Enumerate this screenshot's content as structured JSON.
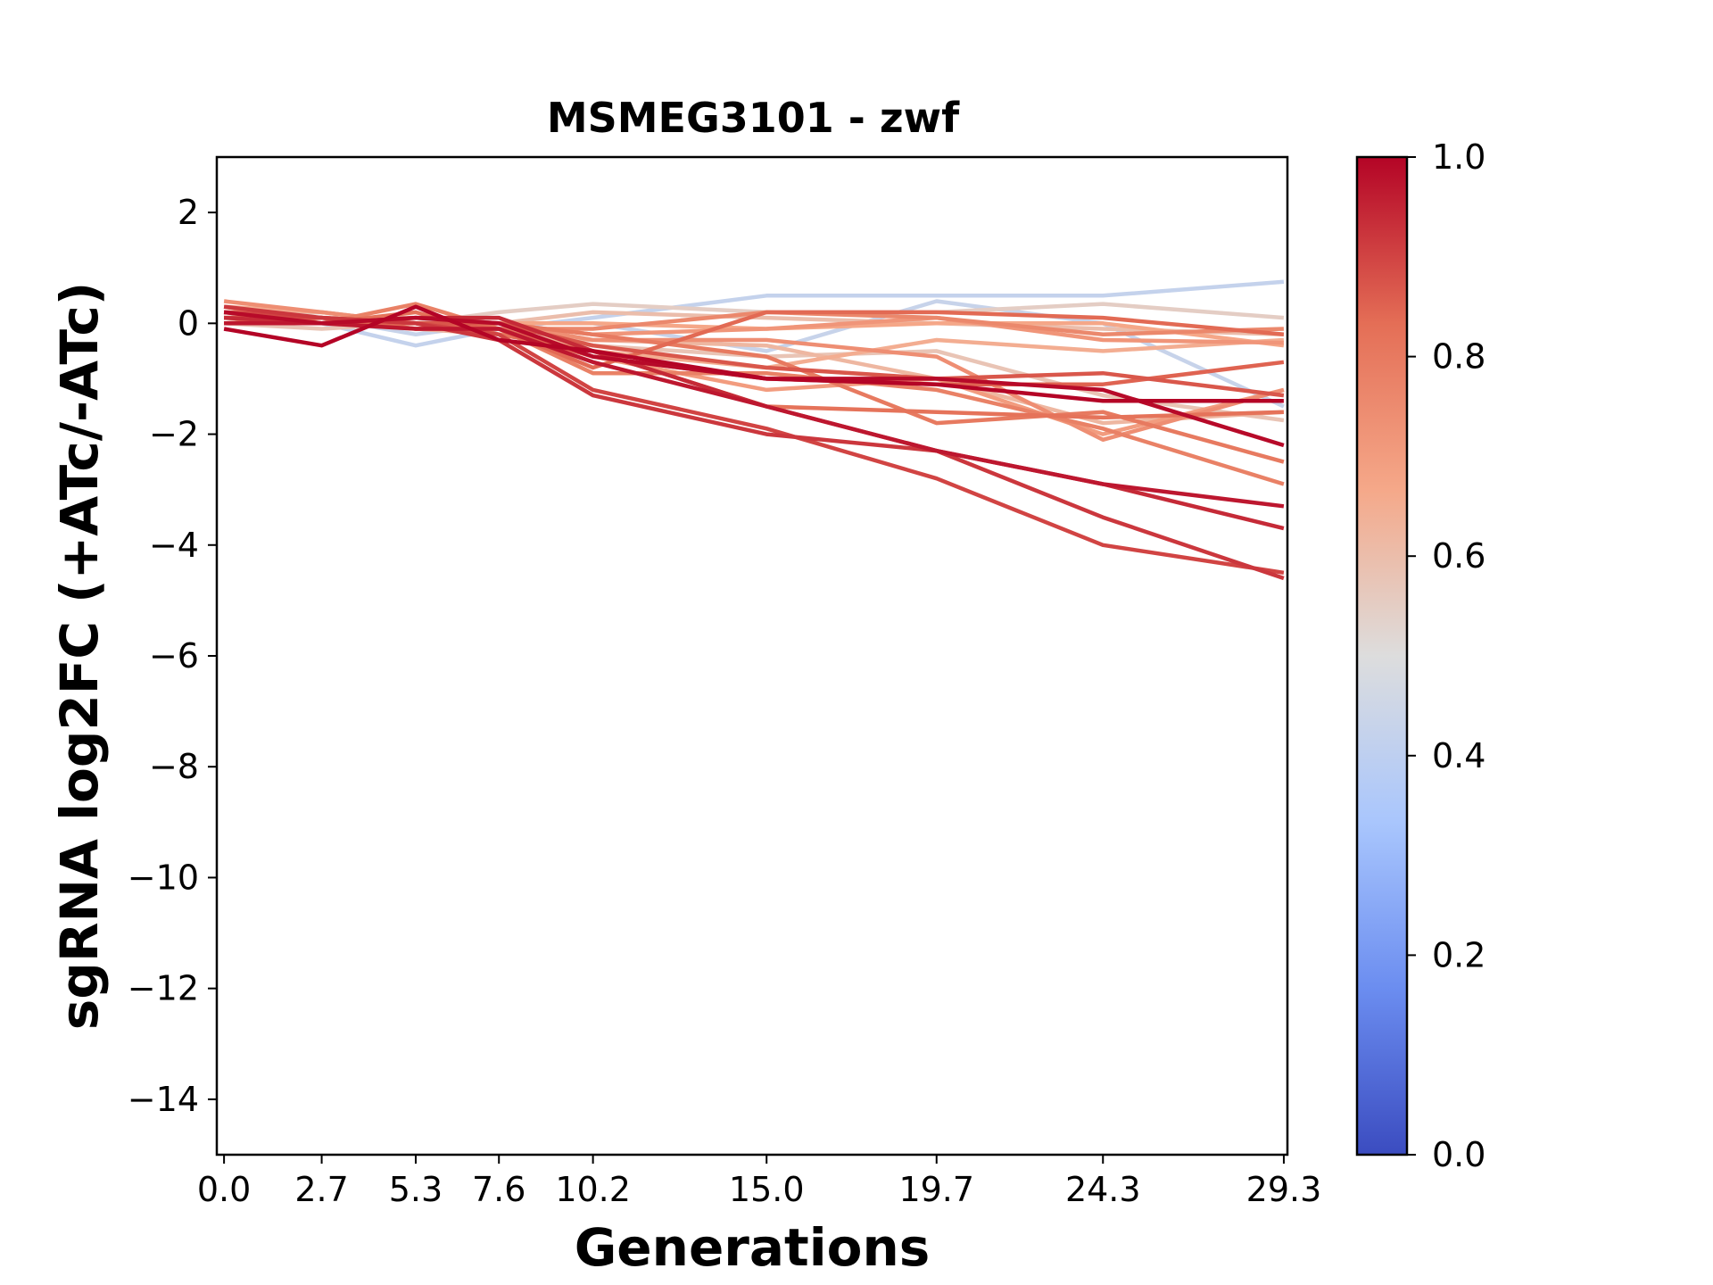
{
  "chart_data": {
    "type": "line",
    "title": "MSMEG3101 - zwf",
    "xlabel": "Generations",
    "ylabel": "sgRNA log2FC (+ATc/-ATc)",
    "x": [
      0.0,
      2.7,
      5.3,
      7.6,
      10.2,
      15.0,
      19.7,
      24.3,
      29.3
    ],
    "x_tick_labels": [
      "0.0",
      "2.7",
      "5.3",
      "7.6",
      "10.2",
      "15.0",
      "19.7",
      "24.3",
      "29.3"
    ],
    "xlim": [
      -0.2,
      29.4
    ],
    "ylim": [
      -15,
      3
    ],
    "y_ticks": [
      2,
      0,
      -2,
      -4,
      -6,
      -8,
      -10,
      -12,
      -14
    ],
    "y_tick_labels": [
      "2",
      "0",
      "−2",
      "−4",
      "−6",
      "−8",
      "−10",
      "−12",
      "−14"
    ],
    "grid": false,
    "colormap": {
      "name": "coolwarm",
      "range": [
        0.0,
        1.0
      ],
      "ticks": [
        0.0,
        0.2,
        0.4,
        0.6,
        0.8,
        1.0
      ],
      "tick_labels": [
        "0.0",
        "0.2",
        "0.4",
        "0.6",
        "0.8",
        "1.0"
      ],
      "stops": [
        "#3b4cc0",
        "#6b8df0",
        "#a9c6fd",
        "#dddddd",
        "#f5a889",
        "#e46e56",
        "#b40426"
      ]
    },
    "series": [
      {
        "value": 0.42,
        "values": [
          0.1,
          0.0,
          -0.4,
          -0.1,
          0.1,
          0.5,
          0.5,
          0.5,
          0.75
        ]
      },
      {
        "value": 0.43,
        "values": [
          0.2,
          0.1,
          -0.2,
          0.0,
          0.0,
          -0.5,
          0.4,
          0.0,
          -1.5
        ]
      },
      {
        "value": 0.55,
        "values": [
          0.1,
          0.2,
          0.0,
          0.2,
          0.35,
          0.2,
          0.2,
          0.35,
          0.1
        ]
      },
      {
        "value": 0.58,
        "values": [
          0.0,
          -0.1,
          0.0,
          -0.2,
          -0.4,
          -0.6,
          -0.5,
          -1.3,
          -1.75
        ]
      },
      {
        "value": 0.6,
        "values": [
          0.2,
          0.1,
          0.1,
          0.0,
          0.2,
          0.1,
          0.0,
          -0.1,
          -0.2
        ]
      },
      {
        "value": 0.62,
        "values": [
          0.0,
          0.0,
          -0.1,
          -0.2,
          -0.3,
          -0.4,
          -1.0,
          -1.8,
          -1.6
        ]
      },
      {
        "value": 0.65,
        "values": [
          0.3,
          0.2,
          0.0,
          -0.1,
          -0.5,
          -0.8,
          -0.3,
          -0.5,
          -0.3
        ]
      },
      {
        "value": 0.67,
        "values": [
          0.1,
          0.0,
          0.0,
          0.0,
          0.0,
          -0.1,
          0.0,
          0.0,
          -0.4
        ]
      },
      {
        "value": 0.7,
        "values": [
          0.2,
          0.1,
          0.0,
          -0.1,
          -0.6,
          -1.2,
          -1.0,
          -2.0,
          -1.2
        ]
      },
      {
        "value": 0.72,
        "values": [
          0.0,
          0.0,
          0.1,
          0.0,
          -0.2,
          -0.1,
          0.1,
          -0.3,
          -0.35
        ]
      },
      {
        "value": 0.74,
        "values": [
          0.4,
          0.2,
          0.0,
          0.0,
          -0.3,
          -0.3,
          -0.6,
          -2.1,
          -1.2
        ]
      },
      {
        "value": 0.76,
        "values": [
          0.1,
          0.1,
          0.0,
          -0.1,
          -0.1,
          0.2,
          0.1,
          -0.2,
          -0.1
        ]
      },
      {
        "value": 0.78,
        "values": [
          0.3,
          0.0,
          0.35,
          -0.1,
          -0.9,
          -0.9,
          -1.2,
          -1.9,
          -2.9
        ]
      },
      {
        "value": 0.8,
        "values": [
          0.2,
          0.1,
          -0.1,
          0.0,
          -0.2,
          -0.6,
          -1.8,
          -1.6,
          -2.5
        ]
      },
      {
        "value": 0.82,
        "values": [
          0.1,
          0.0,
          0.2,
          -0.2,
          -0.5,
          -1.5,
          -1.6,
          -1.7,
          -1.6
        ]
      },
      {
        "value": 0.84,
        "values": [
          0.0,
          0.1,
          -0.1,
          -0.1,
          -0.8,
          0.2,
          0.2,
          0.1,
          -0.2
        ]
      },
      {
        "value": 0.85,
        "values": [
          0.2,
          0.0,
          0.0,
          -0.1,
          -0.6,
          -1.0,
          -1.1,
          -1.1,
          -0.7
        ]
      },
      {
        "value": 0.87,
        "values": [
          0.1,
          0.1,
          0.0,
          0.0,
          -0.4,
          -0.8,
          -1.0,
          -0.9,
          -1.3
        ]
      },
      {
        "value": 0.9,
        "values": [
          0.2,
          0.1,
          0.0,
          -0.2,
          -1.2,
          -1.9,
          -2.8,
          -4.0,
          -4.5
        ]
      },
      {
        "value": 0.92,
        "values": [
          0.3,
          0.1,
          0.0,
          -0.3,
          -1.3,
          -2.0,
          -2.3,
          -3.5,
          -4.6
        ]
      },
      {
        "value": 0.94,
        "values": [
          0.1,
          0.0,
          0.1,
          0.1,
          -0.5,
          -1.5,
          -2.3,
          -2.9,
          -3.7
        ]
      },
      {
        "value": 0.97,
        "values": [
          0.0,
          0.0,
          -0.1,
          -0.1,
          -0.7,
          -1.5,
          -2.3,
          -2.9,
          -3.3
        ]
      },
      {
        "value": 0.99,
        "values": [
          0.2,
          0.0,
          0.1,
          0.0,
          -0.6,
          -1.0,
          -1.0,
          -1.2,
          -2.2
        ]
      },
      {
        "value": 1.0,
        "values": [
          -0.1,
          -0.4,
          0.3,
          -0.3,
          -0.5,
          -1.0,
          -1.1,
          -1.4,
          -1.4
        ]
      }
    ]
  }
}
